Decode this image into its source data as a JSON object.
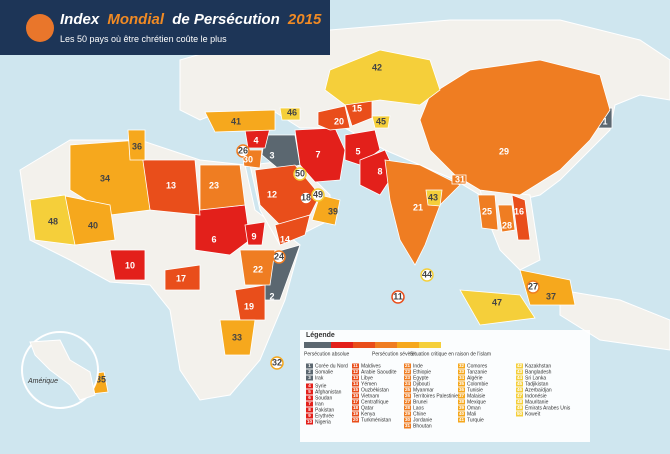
{
  "header": {
    "title_parts": [
      "Index",
      "Mondial",
      "de Persécution",
      "2015"
    ],
    "subtitle": "Les 50 pays où être chrétien coûte le plus"
  },
  "legend": {
    "title": "Légende",
    "scale_labels": [
      "Persécution absolue",
      "Persécution sévère",
      "Situation critique en raison de l'islam"
    ],
    "groups": [
      {
        "color": "#5b6770",
        "entries": [
          {
            "rank": 1,
            "name": "Corée du Nord"
          },
          {
            "rank": 2,
            "name": "Somalie"
          },
          {
            "rank": 3,
            "name": "Irak"
          }
        ]
      },
      {
        "color": "#e3201b",
        "entries": [
          {
            "rank": 4,
            "name": "Syrie"
          },
          {
            "rank": 5,
            "name": "Afghanistan"
          },
          {
            "rank": 6,
            "name": "Soudan"
          },
          {
            "rank": 7,
            "name": "Iran"
          },
          {
            "rank": 8,
            "name": "Pakistan"
          },
          {
            "rank": 9,
            "name": "Érythrée"
          },
          {
            "rank": 10,
            "name": "Nigeria"
          }
        ]
      },
      {
        "color": "#e94e1b",
        "entries": [
          {
            "rank": 11,
            "name": "Maldives"
          },
          {
            "rank": 12,
            "name": "Arabie Saoudite"
          },
          {
            "rank": 13,
            "name": "Libye"
          },
          {
            "rank": 14,
            "name": "Yémen"
          },
          {
            "rank": 15,
            "name": "Ouzbékistan"
          },
          {
            "rank": 16,
            "name": "Vietnam"
          },
          {
            "rank": 17,
            "name": "Centrafrique"
          },
          {
            "rank": 18,
            "name": "Qatar"
          },
          {
            "rank": 19,
            "name": "Kenya"
          },
          {
            "rank": 20,
            "name": "Turkménistan"
          }
        ]
      },
      {
        "color": "#ef7d22",
        "entries": [
          {
            "rank": 21,
            "name": "Inde"
          },
          {
            "rank": 22,
            "name": "Ethiopie"
          },
          {
            "rank": 23,
            "name": "Egypte"
          },
          {
            "rank": 24,
            "name": "Djibouti"
          },
          {
            "rank": 25,
            "name": "Myanmar"
          },
          {
            "rank": 26,
            "name": "Territoires Palestiniens"
          },
          {
            "rank": 27,
            "name": "Brunei"
          },
          {
            "rank": 28,
            "name": "Laos"
          },
          {
            "rank": 29,
            "name": "Chine"
          },
          {
            "rank": 30,
            "name": "Jordanie"
          },
          {
            "rank": 31,
            "name": "Bhoutan"
          }
        ]
      },
      {
        "color": "#f6a81d",
        "entries": [
          {
            "rank": 32,
            "name": "Comores"
          },
          {
            "rank": 33,
            "name": "Tanzanie"
          },
          {
            "rank": 34,
            "name": "Algérie"
          },
          {
            "rank": 35,
            "name": "Colombie"
          },
          {
            "rank": 36,
            "name": "Tunisie"
          },
          {
            "rank": 37,
            "name": "Malaisie"
          },
          {
            "rank": 38,
            "name": "Mexique"
          },
          {
            "rank": 39,
            "name": "Oman"
          },
          {
            "rank": 40,
            "name": "Mali"
          },
          {
            "rank": 41,
            "name": "Turquie"
          }
        ]
      },
      {
        "color": "#f5cf3a",
        "entries": [
          {
            "rank": 42,
            "name": "Kazakhstan"
          },
          {
            "rank": 43,
            "name": "Bangladesh"
          },
          {
            "rank": 44,
            "name": "Sri Lanka"
          },
          {
            "rank": 45,
            "name": "Tadjikistan"
          },
          {
            "rank": 46,
            "name": "Azerbaïdjan"
          },
          {
            "rank": 47,
            "name": "Indonésie"
          },
          {
            "rank": 48,
            "name": "Mauritanie"
          },
          {
            "rank": 49,
            "name": "Émirats Arabes Unis"
          },
          {
            "rank": 50,
            "name": "Koweït"
          }
        ]
      }
    ]
  },
  "inset": {
    "label": "Amérique"
  }
}
